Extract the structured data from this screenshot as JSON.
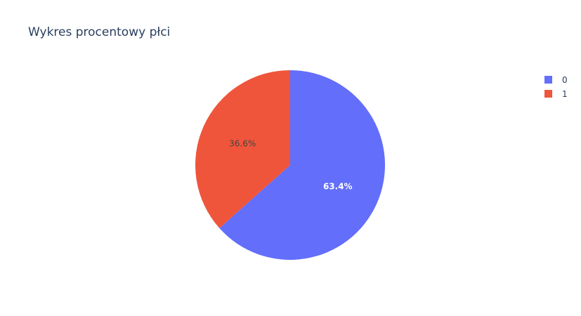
{
  "chart_data": {
    "type": "pie",
    "title": "Wykres procentowy płci",
    "labels": [
      "0",
      "1"
    ],
    "values": [
      63.4,
      36.6
    ],
    "value_labels": [
      "63.4%",
      "36.6%"
    ],
    "colors": [
      "#636efa",
      "#ef553b"
    ],
    "label_colors": [
      "#ffffff",
      "#444444"
    ],
    "direction": "clockwise",
    "legend_position": "top-right"
  }
}
